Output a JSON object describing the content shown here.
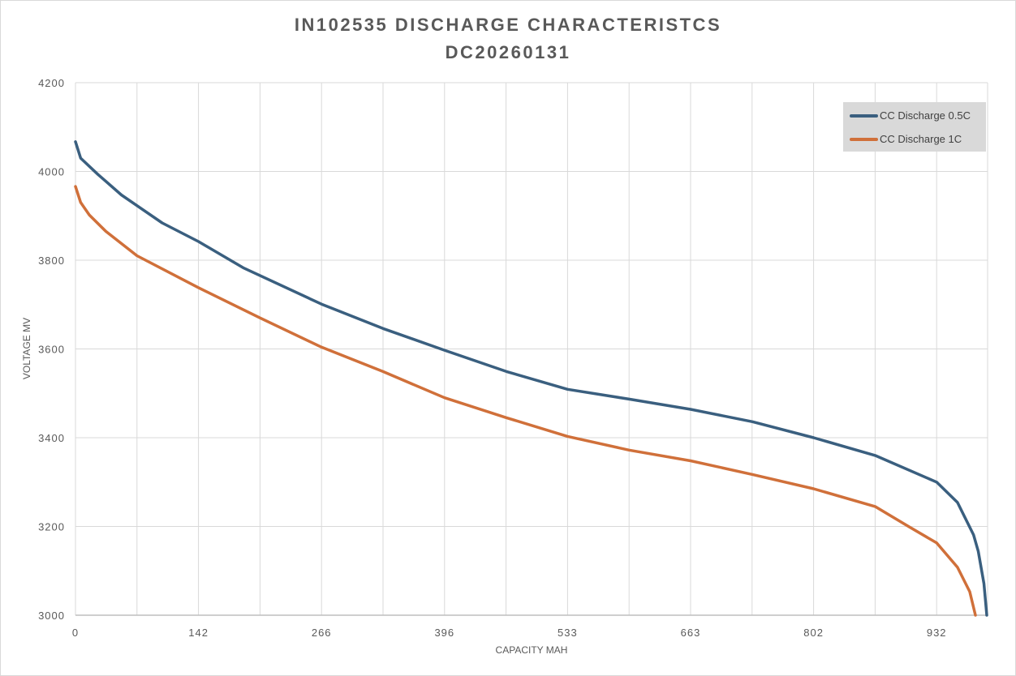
{
  "chart_data": {
    "type": "line",
    "title": "IN102535 DISCHARGE CHARACTERISTCS",
    "subtitle": "DC20260131",
    "xlabel": "CAPACITY MAH",
    "ylabel": "VOLTAGE MV",
    "ylim": [
      3000,
      4200
    ],
    "yticks": [
      "3000",
      "3200",
      "3400",
      "3600",
      "3800",
      "4000",
      "4200"
    ],
    "xticks": [
      "0",
      "142",
      "266",
      "396",
      "533",
      "663",
      "802",
      "932"
    ],
    "grid": true,
    "legend_position": "top-right",
    "series": [
      {
        "name": "CC Discharge 0.5C",
        "color": "#3a5f7f",
        "points": [
          [
            0,
            4067
          ],
          [
            6,
            4030
          ],
          [
            26,
            3993
          ],
          [
            53,
            3947
          ],
          [
            100,
            3884
          ],
          [
            142,
            3842
          ],
          [
            187,
            3783
          ],
          [
            266,
            3701
          ],
          [
            331,
            3646
          ],
          [
            396,
            3597
          ],
          [
            465,
            3549
          ],
          [
            533,
            3509
          ],
          [
            598,
            3487
          ],
          [
            663,
            3464
          ],
          [
            733,
            3436
          ],
          [
            802,
            3400
          ],
          [
            867,
            3360
          ],
          [
            932,
            3300
          ],
          [
            954,
            3254
          ],
          [
            971,
            3181
          ],
          [
            976,
            3144
          ],
          [
            982,
            3071
          ],
          [
            985,
            3000
          ]
        ]
      },
      {
        "name": "CC Discharge 1C",
        "color": "#d0703a",
        "points": [
          [
            0,
            3966
          ],
          [
            6,
            3930
          ],
          [
            16,
            3902
          ],
          [
            35,
            3865
          ],
          [
            71,
            3810
          ],
          [
            142,
            3738
          ],
          [
            204,
            3670
          ],
          [
            266,
            3604
          ],
          [
            331,
            3549
          ],
          [
            396,
            3490
          ],
          [
            465,
            3445
          ],
          [
            533,
            3403
          ],
          [
            598,
            3372
          ],
          [
            663,
            3348
          ],
          [
            733,
            3317
          ],
          [
            802,
            3285
          ],
          [
            867,
            3245
          ],
          [
            903,
            3199
          ],
          [
            932,
            3163
          ],
          [
            954,
            3108
          ],
          [
            967,
            3053
          ],
          [
            973,
            3000
          ]
        ]
      }
    ]
  }
}
